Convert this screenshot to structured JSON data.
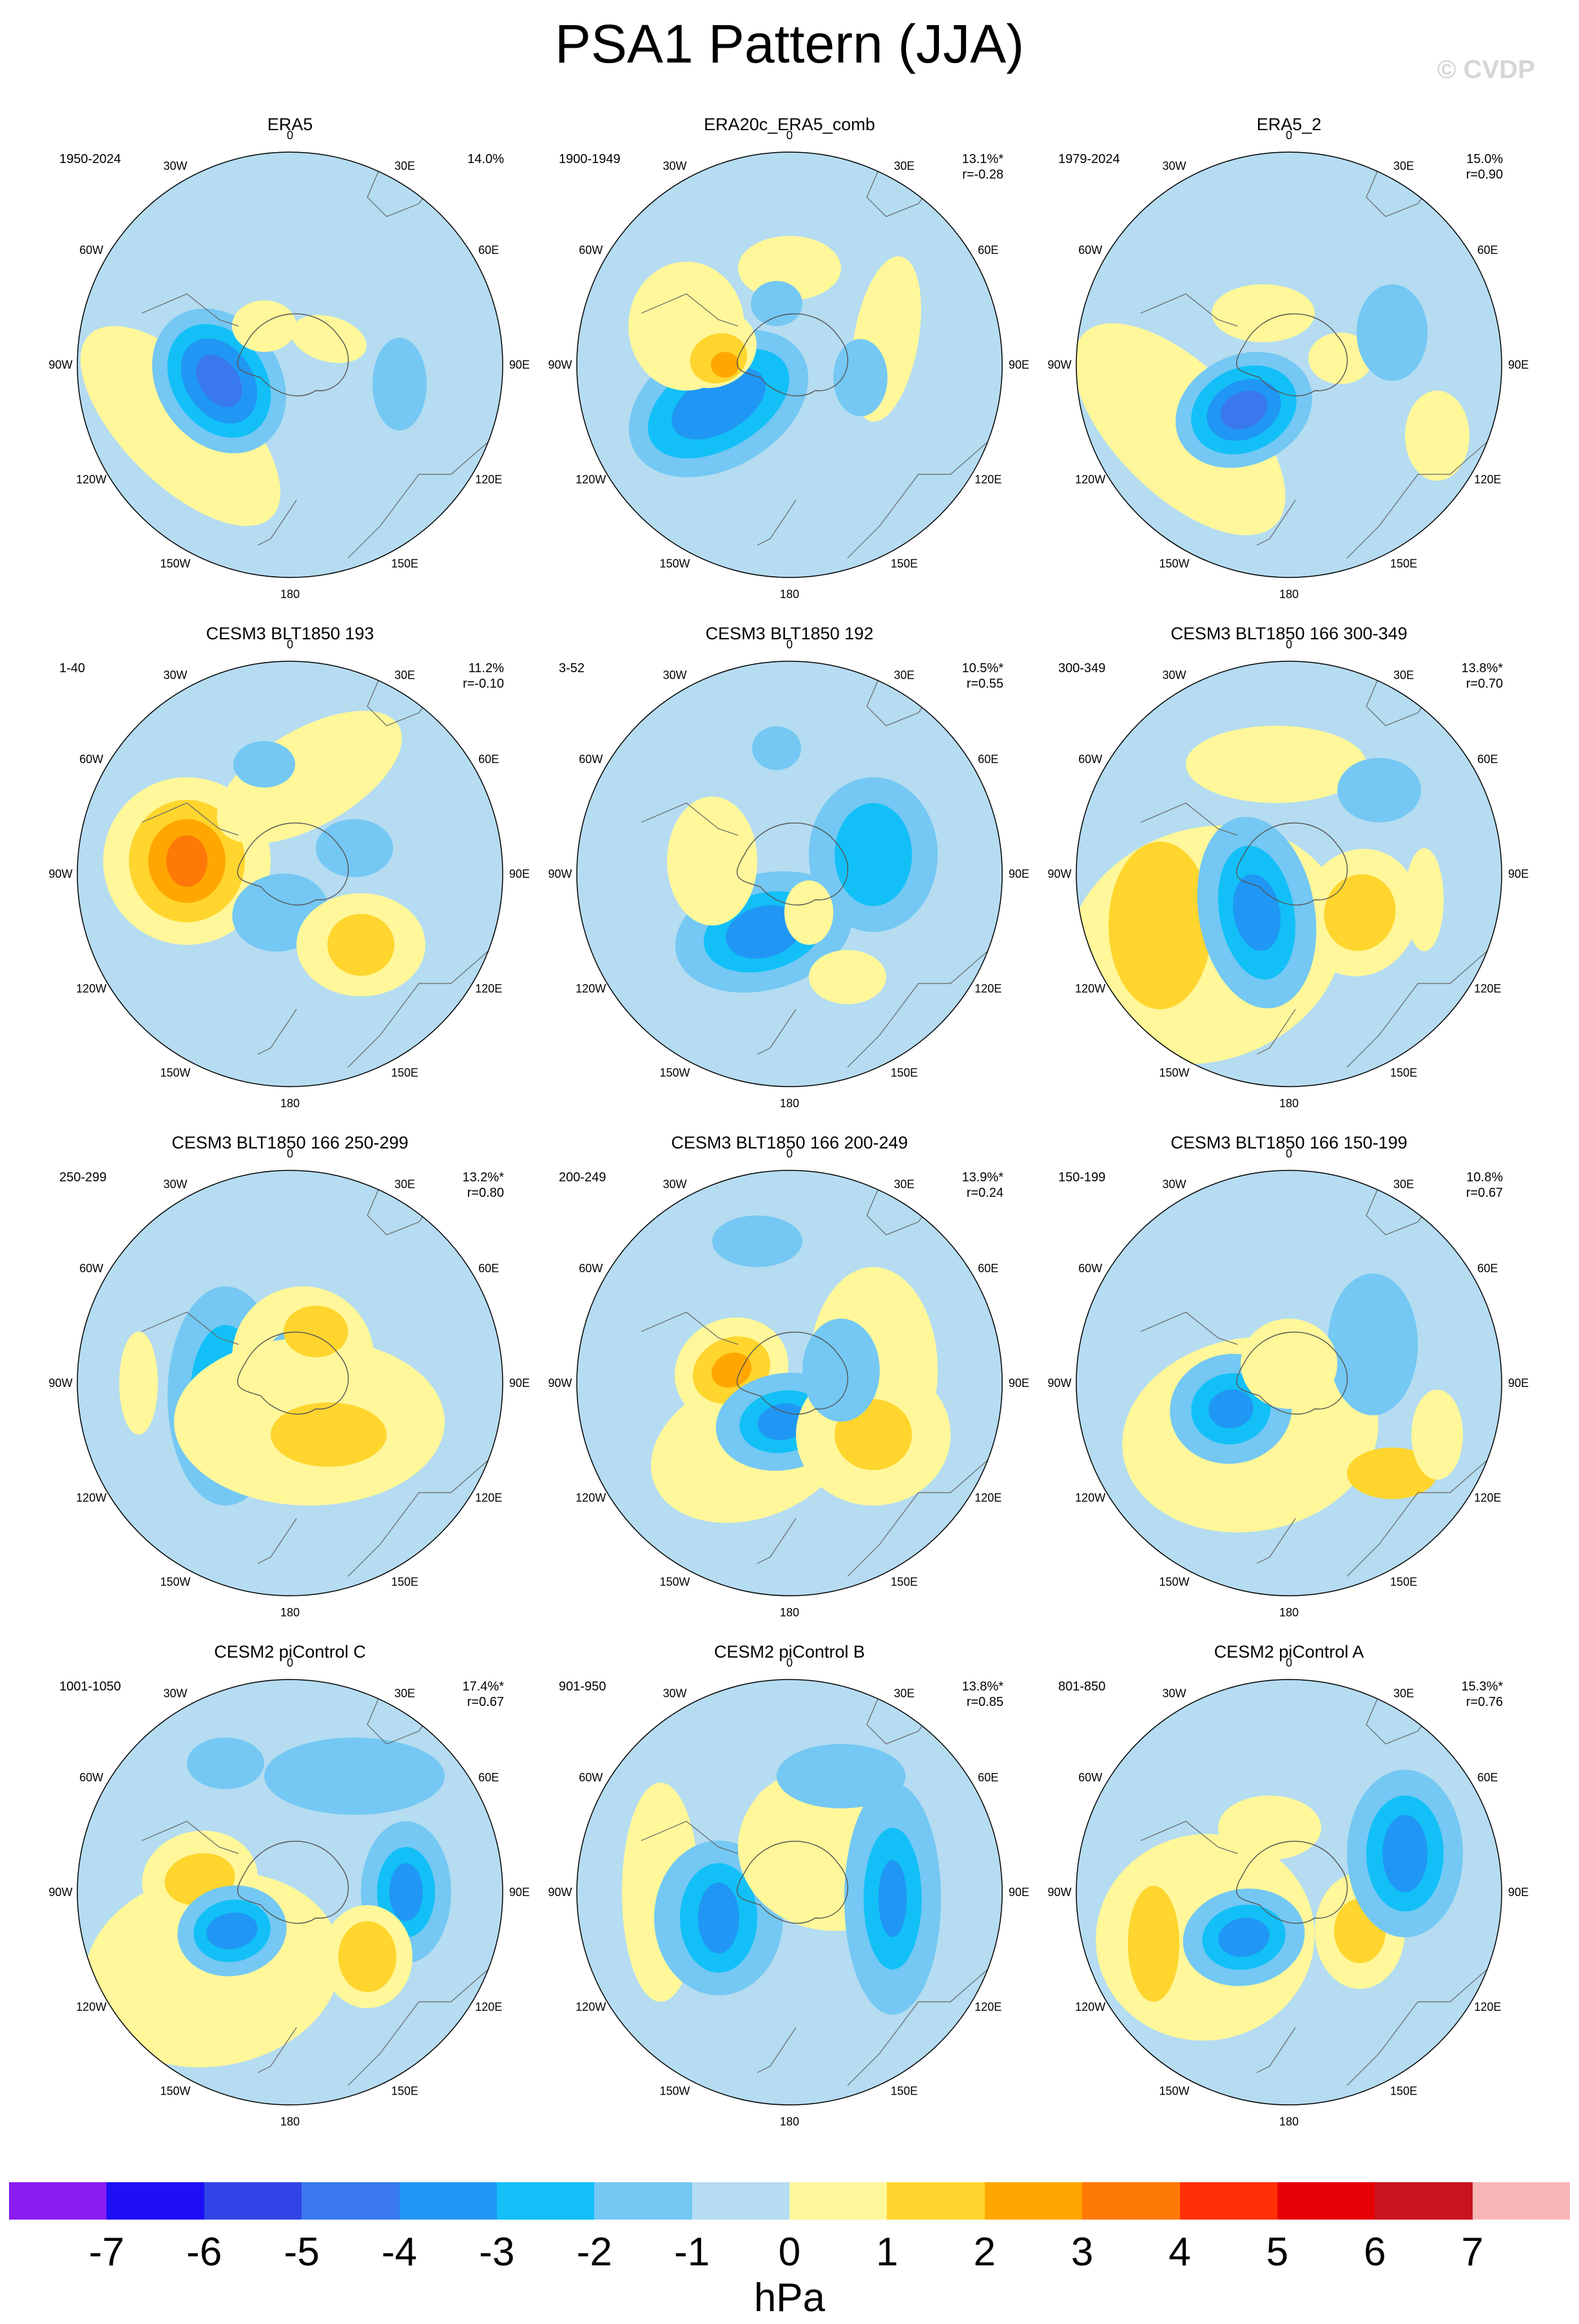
{
  "title": "PSA1 Pattern (JJA)",
  "watermark": "© CVDP",
  "lon_labels": [
    "0",
    "30E",
    "60E",
    "90E",
    "120E",
    "150E",
    "180",
    "150W",
    "120W",
    "90W",
    "60W",
    "30W"
  ],
  "colorbar": {
    "levels": [
      "-7",
      "-6",
      "-5",
      "-4",
      "-3",
      "-2",
      "-1",
      "0",
      "1",
      "2",
      "3",
      "4",
      "5",
      "6",
      "7"
    ],
    "colors": [
      "#8a1cf0",
      "#1e0ff7",
      "#3145e6",
      "#3a78ee",
      "#2097f4",
      "#12c0f7",
      "#74c8f3",
      "#b5dcf1",
      "#fff79a",
      "#ffd52e",
      "#ffa700",
      "#ff7908",
      "#ff3008",
      "#e60005",
      "#c91420",
      "#f9b6b6"
    ],
    "units": "hPa"
  },
  "panels": [
    {
      "title": "ERA5",
      "years": "1950-2024",
      "pct": "14.0%",
      "r": ""
    },
    {
      "title": "ERA20c_ERA5_comb",
      "years": "1900-1949",
      "pct": "13.1%*",
      "r": "r=-0.28"
    },
    {
      "title": "ERA5_2",
      "years": "1979-2024",
      "pct": "15.0%",
      "r": "r=0.90"
    },
    {
      "title": "CESM3 BLT1850 193",
      "years": "1-40",
      "pct": "11.2%",
      "r": "r=-0.10"
    },
    {
      "title": "CESM3 BLT1850 192",
      "years": "3-52",
      "pct": "10.5%*",
      "r": "r=0.55"
    },
    {
      "title": "CESM3 BLT1850 166 300-349",
      "years": "300-349",
      "pct": "13.8%*",
      "r": "r=0.70"
    },
    {
      "title": "CESM3 BLT1850 166 250-299",
      "years": "250-299",
      "pct": "13.2%*",
      "r": "r=0.80"
    },
    {
      "title": "CESM3 BLT1850 166 200-249",
      "years": "200-249",
      "pct": "13.9%*",
      "r": "r=0.24"
    },
    {
      "title": "CESM3 BLT1850 166 150-199",
      "years": "150-199",
      "pct": "10.8%",
      "r": "r=0.67"
    },
    {
      "title": "CESM2 piControl C",
      "years": "1001-1050",
      "pct": "17.4%*",
      "r": "r=0.67"
    },
    {
      "title": "CESM2 piControl B",
      "years": "901-950",
      "pct": "13.8%*",
      "r": "r=0.85"
    },
    {
      "title": "CESM2 piControl A",
      "years": "801-850",
      "pct": "15.3%*",
      "r": "r=0.76"
    }
  ]
}
